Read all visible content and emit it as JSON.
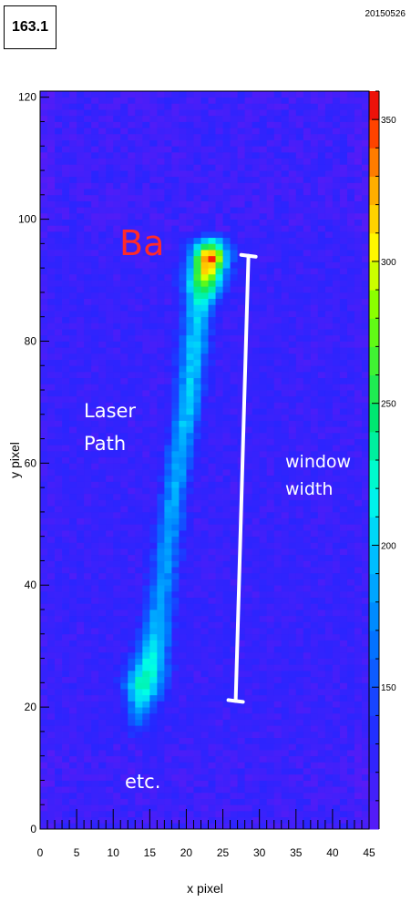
{
  "header": {
    "id_label": "163.1",
    "date_label": "20150526"
  },
  "chart_data": {
    "type": "heatmap",
    "xlabel": "x pixel",
    "ylabel": "y pixel",
    "xlim": [
      0,
      45
    ],
    "ylim": [
      0,
      121
    ],
    "x_ticks": [
      "0",
      "5",
      "10",
      "15",
      "20",
      "25",
      "30",
      "35",
      "40",
      "45"
    ],
    "y_ticks": [
      "0",
      "20",
      "40",
      "60",
      "80",
      "100",
      "120"
    ],
    "colorbar": {
      "min": 100,
      "max": 360,
      "ticks": [
        "150",
        "200",
        "250",
        "300",
        "350"
      ]
    },
    "annotations": {
      "element": "Ba",
      "laser_line1": "Laser",
      "laser_line2": "Path",
      "window_line1": "window",
      "window_line2": "width",
      "etc": "etc."
    },
    "window_marker": {
      "x1": 28.5,
      "y1": 94,
      "x2": 27.0,
      "y2": 21
    },
    "track": [
      {
        "y": 94,
        "x": 23.2,
        "width": 2.3,
        "peak": 358
      },
      {
        "y": 90,
        "x": 22.6,
        "width": 2.5,
        "peak": 285
      },
      {
        "y": 85,
        "x": 21.6,
        "width": 1.9,
        "peak": 205
      },
      {
        "y": 70,
        "x": 20.3,
        "width": 1.7,
        "peak": 200
      },
      {
        "y": 55,
        "x": 18.3,
        "width": 1.7,
        "peak": 185
      },
      {
        "y": 40,
        "x": 16.8,
        "width": 1.8,
        "peak": 180
      },
      {
        "y": 32,
        "x": 15.9,
        "width": 2.0,
        "peak": 195
      },
      {
        "y": 24,
        "x": 14.3,
        "width": 2.6,
        "peak": 240
      },
      {
        "y": 18,
        "x": 13.5,
        "width": 1.8,
        "peak": 165
      }
    ],
    "background_level": 118
  }
}
